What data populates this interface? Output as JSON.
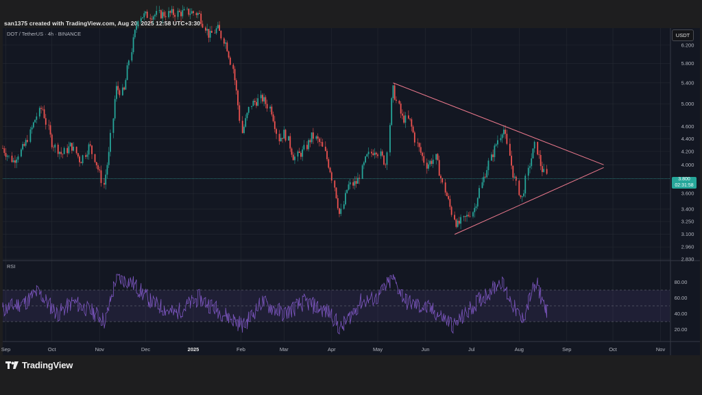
{
  "header": {
    "caption": "san1375 created with TradingView.com, Aug 20, 2025 12:58 UTC+3:30"
  },
  "symbol_label": "DOT / TetherUS · 4h · BINANCE",
  "currency_button": "USDT",
  "rsi_label": "RSI",
  "last_price": {
    "value": "3.800",
    "countdown": "02:31:58"
  },
  "brand": {
    "name": "TradingView"
  },
  "colors": {
    "background": "#131722",
    "frame": "#1e1e1f",
    "up": "#26a69a",
    "down": "#ef5350",
    "trendline": "#f07b8f",
    "rsi_line": "#7e57c2",
    "rsi_band": "#7e57c2",
    "grid": "#262a33"
  },
  "chart_data": [
    {
      "type": "candlestick",
      "title": "DOT / TetherUS · 4h · BINANCE",
      "xlabel": "",
      "ylabel": "",
      "x_ticks": [
        "Sep",
        "Oct",
        "Nov",
        "Dec",
        "2025",
        "Feb",
        "Mar",
        "Apr",
        "May",
        "Jun",
        "Jul",
        "Aug",
        "Sep",
        "Oct",
        "Nov"
      ],
      "y_ticks": [
        "6.200",
        "5.800",
        "5.400",
        "5.000",
        "4.600",
        "4.400",
        "4.200",
        "4.000",
        "3.800",
        "3.600",
        "3.400",
        "3.250",
        "3.100",
        "2.960",
        "2.830"
      ],
      "y_scale": "log",
      "ylim": [
        2.83,
        6.6
      ],
      "grid": true,
      "last_value": 3.8,
      "close_path": [
        {
          "x": "2024-08-30",
          "y": 4.25
        },
        {
          "x": "2024-09-06",
          "y": 4.05
        },
        {
          "x": "2024-09-14",
          "y": 4.3
        },
        {
          "x": "2024-09-21",
          "y": 4.75
        },
        {
          "x": "2024-09-25",
          "y": 4.95
        },
        {
          "x": "2024-10-01",
          "y": 4.35
        },
        {
          "x": "2024-10-08",
          "y": 4.15
        },
        {
          "x": "2024-10-14",
          "y": 4.3
        },
        {
          "x": "2024-10-20",
          "y": 4.05
        },
        {
          "x": "2024-10-26",
          "y": 4.3
        },
        {
          "x": "2024-11-01",
          "y": 3.9
        },
        {
          "x": "2024-11-04",
          "y": 3.72
        },
        {
          "x": "2024-11-08",
          "y": 4.2
        },
        {
          "x": "2024-11-12",
          "y": 5.3
        },
        {
          "x": "2024-11-17",
          "y": 5.2
        },
        {
          "x": "2024-11-22",
          "y": 6.1
        },
        {
          "x": "2024-11-27",
          "y": 6.9
        },
        {
          "x": "2024-12-31",
          "y": 7.0
        },
        {
          "x": "2025-01-05",
          "y": 6.95
        },
        {
          "x": "2025-01-12",
          "y": 6.4
        },
        {
          "x": "2025-01-17",
          "y": 6.6
        },
        {
          "x": "2025-01-23",
          "y": 6.2
        },
        {
          "x": "2025-01-27",
          "y": 5.7
        },
        {
          "x": "2025-02-02",
          "y": 4.5
        },
        {
          "x": "2025-02-08",
          "y": 5.0
        },
        {
          "x": "2025-02-15",
          "y": 5.1
        },
        {
          "x": "2025-02-21",
          "y": 4.9
        },
        {
          "x": "2025-02-26",
          "y": 4.4
        },
        {
          "x": "2025-03-02",
          "y": 4.5
        },
        {
          "x": "2025-03-08",
          "y": 4.1
        },
        {
          "x": "2025-03-14",
          "y": 4.2
        },
        {
          "x": "2025-03-20",
          "y": 4.45
        },
        {
          "x": "2025-03-26",
          "y": 4.3
        },
        {
          "x": "2025-04-01",
          "y": 3.9
        },
        {
          "x": "2025-04-07",
          "y": 3.3
        },
        {
          "x": "2025-04-12",
          "y": 3.7
        },
        {
          "x": "2025-04-18",
          "y": 3.75
        },
        {
          "x": "2025-04-24",
          "y": 4.1
        },
        {
          "x": "2025-04-30",
          "y": 4.25
        },
        {
          "x": "2025-05-07",
          "y": 4.0
        },
        {
          "x": "2025-05-11",
          "y": 5.3
        },
        {
          "x": "2025-05-17",
          "y": 4.75
        },
        {
          "x": "2025-05-22",
          "y": 4.7
        },
        {
          "x": "2025-05-27",
          "y": 4.3
        },
        {
          "x": "2025-06-02",
          "y": 4.0
        },
        {
          "x": "2025-06-08",
          "y": 4.1
        },
        {
          "x": "2025-06-13",
          "y": 3.7
        },
        {
          "x": "2025-06-18",
          "y": 3.4
        },
        {
          "x": "2025-06-22",
          "y": 3.2
        },
        {
          "x": "2025-06-28",
          "y": 3.3
        },
        {
          "x": "2025-07-03",
          "y": 3.4
        },
        {
          "x": "2025-07-09",
          "y": 3.8
        },
        {
          "x": "2025-07-14",
          "y": 4.1
        },
        {
          "x": "2025-07-19",
          "y": 4.4
        },
        {
          "x": "2025-07-22",
          "y": 4.6
        },
        {
          "x": "2025-07-28",
          "y": 3.9
        },
        {
          "x": "2025-08-03",
          "y": 3.5
        },
        {
          "x": "2025-08-08",
          "y": 4.0
        },
        {
          "x": "2025-08-12",
          "y": 4.3
        },
        {
          "x": "2025-08-16",
          "y": 3.95
        },
        {
          "x": "2025-08-20",
          "y": 3.8
        }
      ],
      "trendlines": [
        {
          "name": "upper",
          "from": {
            "x": "2025-05-11",
            "y": 5.4
          },
          "to": {
            "x": "2025-09-25",
            "y": 4.0
          }
        },
        {
          "name": "lower",
          "from": {
            "x": "2025-06-20",
            "y": 3.1
          },
          "to": {
            "x": "2025-09-25",
            "y": 3.96
          }
        }
      ]
    },
    {
      "type": "line",
      "title": "RSI",
      "xlabel": "",
      "ylabel": "",
      "y_ticks": [
        "80.00",
        "60.00",
        "40.00",
        "20.00"
      ],
      "ylim": [
        10,
        90
      ],
      "bands": [
        30,
        50,
        70
      ],
      "path": [
        {
          "x": "2024-08-30",
          "y": 45
        },
        {
          "x": "2024-09-14",
          "y": 55
        },
        {
          "x": "2024-09-22",
          "y": 68
        },
        {
          "x": "2024-10-05",
          "y": 40
        },
        {
          "x": "2024-10-15",
          "y": 55
        },
        {
          "x": "2024-10-30",
          "y": 40
        },
        {
          "x": "2024-11-05",
          "y": 30
        },
        {
          "x": "2024-11-12",
          "y": 85
        },
        {
          "x": "2024-11-22",
          "y": 80
        },
        {
          "x": "2024-12-05",
          "y": 55
        },
        {
          "x": "2024-12-20",
          "y": 40
        },
        {
          "x": "2025-01-05",
          "y": 60
        },
        {
          "x": "2025-01-25",
          "y": 35
        },
        {
          "x": "2025-02-03",
          "y": 25
        },
        {
          "x": "2025-02-15",
          "y": 55
        },
        {
          "x": "2025-03-01",
          "y": 40
        },
        {
          "x": "2025-03-15",
          "y": 55
        },
        {
          "x": "2025-04-01",
          "y": 40
        },
        {
          "x": "2025-04-07",
          "y": 20
        },
        {
          "x": "2025-04-20",
          "y": 55
        },
        {
          "x": "2025-05-01",
          "y": 60
        },
        {
          "x": "2025-05-11",
          "y": 85
        },
        {
          "x": "2025-05-20",
          "y": 55
        },
        {
          "x": "2025-06-05",
          "y": 45
        },
        {
          "x": "2025-06-20",
          "y": 25
        },
        {
          "x": "2025-07-05",
          "y": 55
        },
        {
          "x": "2025-07-14",
          "y": 70
        },
        {
          "x": "2025-07-20",
          "y": 82
        },
        {
          "x": "2025-08-03",
          "y": 30
        },
        {
          "x": "2025-08-10",
          "y": 70
        },
        {
          "x": "2025-08-13",
          "y": 75
        },
        {
          "x": "2025-08-20",
          "y": 40
        }
      ]
    }
  ]
}
